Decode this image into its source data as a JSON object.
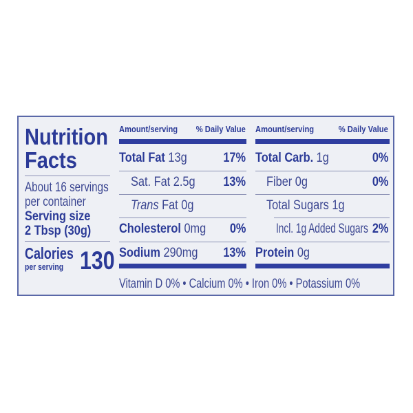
{
  "title_line1": "Nutrition",
  "title_line2": "Facts",
  "servings_line1": "About 16 servings",
  "servings_line2": "per container",
  "serving_size_label": "Serving size",
  "serving_size_value": "2 Tbsp (30g)",
  "calories_label": "Calories",
  "calories_sub": "per serving",
  "calories_value": "130",
  "columns": {
    "amount_header": "Amount/serving",
    "dv_header": "% Daily Value"
  },
  "left_nutrients": [
    {
      "name": "Total Fat",
      "amount": "13g",
      "dv": "17%"
    },
    {
      "name": "Sat. Fat 2.5g",
      "amount": "",
      "dv": "13%"
    },
    {
      "name": "Trans",
      "amount": "Fat 0g",
      "dv": ""
    },
    {
      "name": "Cholesterol",
      "amount": "0mg",
      "dv": "0%"
    },
    {
      "name": "Sodium",
      "amount": "290mg",
      "dv": "13%"
    }
  ],
  "right_nutrients": [
    {
      "name": "Total Carb.",
      "amount": "1g",
      "dv": "0%"
    },
    {
      "name": "Fiber 0g",
      "amount": "",
      "dv": "0%"
    },
    {
      "name": "Total Sugars 1g",
      "amount": "",
      "dv": ""
    },
    {
      "name": "Incl. 1g Added Sugars",
      "amount": "",
      "dv": "2%"
    },
    {
      "name": "Protein",
      "amount": "0g",
      "dv": ""
    }
  ],
  "vitamins": "Vitamin D 0% • Calcium 0% • Iron 0% • Potassium 0%",
  "colors": {
    "ink": "#2b3a97",
    "panel": "#eef0f5",
    "rule": "#2f3ea0"
  }
}
